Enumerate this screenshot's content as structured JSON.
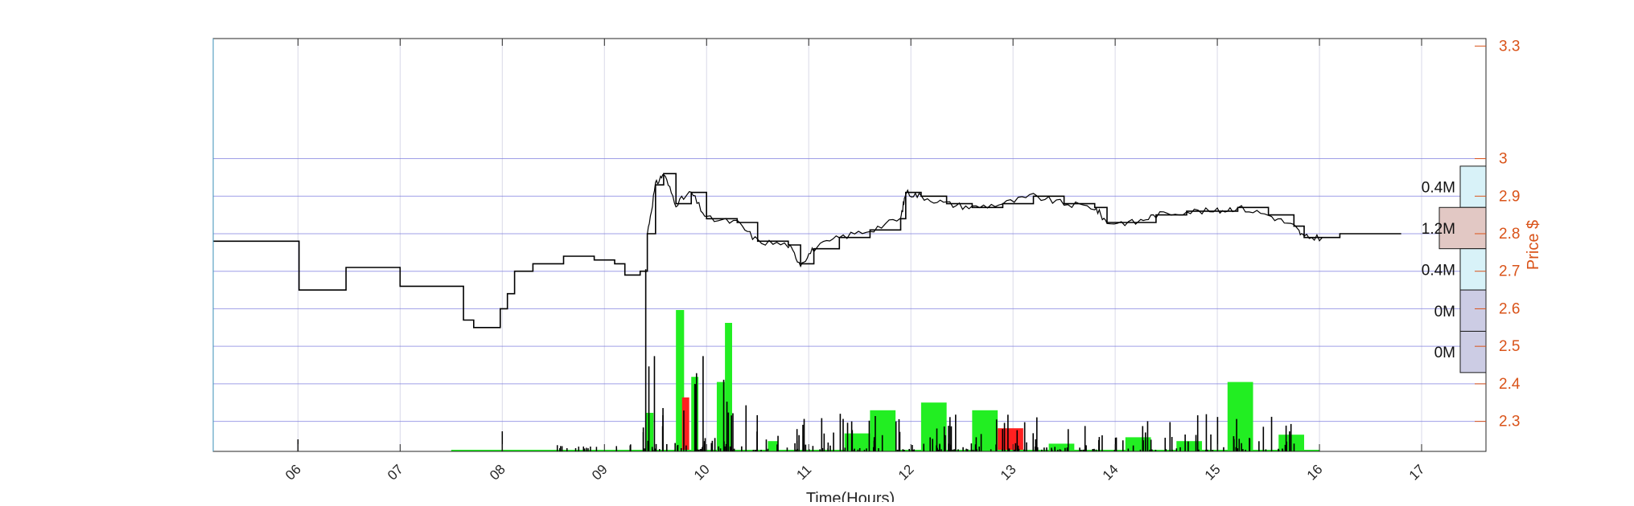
{
  "chart_data": {
    "type": "line",
    "xlabel": "Time(Hours)",
    "ylabel": "Price $",
    "x_range_hours": [
      5.17,
      17.63
    ],
    "x_ticks": [
      "06",
      "07",
      "08",
      "09",
      "10",
      "11",
      "12",
      "13",
      "14",
      "15",
      "16",
      "17"
    ],
    "y_right_range": [
      2.22,
      3.32
    ],
    "y_right_ticks": [
      "2.3",
      "2.4",
      "2.5",
      "2.6",
      "2.7",
      "2.8",
      "2.9",
      "3"
    ],
    "y_right_tick_top": "3.3",
    "grid": true,
    "colors": {
      "price_line": "#000000",
      "price_axis": "#d95319",
      "gridline": "#7f7fe0",
      "vgrid": "#d9d9e8",
      "buy_volume": "#22ee22",
      "sell_volume": "#ff2020",
      "profile_high": "#d8f2f8",
      "profile_max": "#e2c8c4",
      "profile_low": "#cccce4"
    },
    "price_series": [
      [
        5.17,
        2.78
      ],
      [
        6.0,
        2.78
      ],
      [
        6.01,
        2.65
      ],
      [
        6.45,
        2.65
      ],
      [
        6.47,
        2.71
      ],
      [
        6.98,
        2.71
      ],
      [
        7.0,
        2.66
      ],
      [
        7.35,
        2.66
      ],
      [
        7.62,
        2.57
      ],
      [
        7.72,
        2.55
      ],
      [
        7.95,
        2.55
      ],
      [
        7.98,
        2.6
      ],
      [
        8.05,
        2.64
      ],
      [
        8.12,
        2.7
      ],
      [
        8.3,
        2.72
      ],
      [
        8.6,
        2.74
      ],
      [
        8.9,
        2.73
      ],
      [
        9.1,
        2.72
      ],
      [
        9.2,
        2.69
      ],
      [
        9.35,
        2.7
      ],
      [
        9.42,
        2.8
      ],
      [
        9.5,
        2.93
      ],
      [
        9.58,
        2.96
      ],
      [
        9.7,
        2.88
      ],
      [
        9.85,
        2.91
      ],
      [
        10.0,
        2.84
      ],
      [
        10.3,
        2.83
      ],
      [
        10.5,
        2.78
      ],
      [
        10.8,
        2.77
      ],
      [
        10.92,
        2.72
      ],
      [
        11.05,
        2.76
      ],
      [
        11.3,
        2.79
      ],
      [
        11.6,
        2.81
      ],
      [
        11.9,
        2.84
      ],
      [
        11.95,
        2.91
      ],
      [
        12.1,
        2.9
      ],
      [
        12.35,
        2.88
      ],
      [
        12.6,
        2.87
      ],
      [
        12.9,
        2.88
      ],
      [
        13.2,
        2.9
      ],
      [
        13.5,
        2.88
      ],
      [
        13.8,
        2.87
      ],
      [
        13.92,
        2.83
      ],
      [
        14.2,
        2.83
      ],
      [
        14.4,
        2.85
      ],
      [
        14.7,
        2.86
      ],
      [
        15.0,
        2.86
      ],
      [
        15.2,
        2.87
      ],
      [
        15.5,
        2.85
      ],
      [
        15.75,
        2.82
      ],
      [
        15.85,
        2.79
      ],
      [
        16.05,
        2.79
      ],
      [
        16.2,
        2.8
      ],
      [
        16.8,
        2.8
      ]
    ],
    "volume_bars": [
      {
        "x": 9.4,
        "w": 0.08,
        "v": 0.15,
        "side": "buy"
      },
      {
        "x": 9.7,
        "w": 0.08,
        "v": 0.55,
        "side": "buy"
      },
      {
        "x": 9.76,
        "w": 0.07,
        "v": 0.21,
        "side": "sell"
      },
      {
        "x": 9.85,
        "w": 0.07,
        "v": 0.29,
        "side": "buy"
      },
      {
        "x": 10.1,
        "w": 0.08,
        "v": 0.27,
        "side": "buy"
      },
      {
        "x": 10.18,
        "w": 0.07,
        "v": 0.5,
        "side": "buy"
      },
      {
        "x": 10.6,
        "w": 0.1,
        "v": 0.04,
        "side": "buy"
      },
      {
        "x": 11.35,
        "w": 0.25,
        "v": 0.07,
        "side": "buy"
      },
      {
        "x": 11.6,
        "w": 0.25,
        "v": 0.16,
        "side": "buy"
      },
      {
        "x": 12.1,
        "w": 0.25,
        "v": 0.19,
        "side": "buy"
      },
      {
        "x": 12.6,
        "w": 0.25,
        "v": 0.16,
        "side": "buy"
      },
      {
        "x": 12.85,
        "w": 0.25,
        "v": 0.09,
        "side": "sell"
      },
      {
        "x": 13.35,
        "w": 0.25,
        "v": 0.03,
        "side": "buy"
      },
      {
        "x": 14.1,
        "w": 0.25,
        "v": 0.055,
        "side": "buy"
      },
      {
        "x": 14.6,
        "w": 0.25,
        "v": 0.04,
        "side": "buy"
      },
      {
        "x": 15.1,
        "w": 0.25,
        "v": 0.27,
        "side": "buy"
      },
      {
        "x": 15.6,
        "w": 0.25,
        "v": 0.065,
        "side": "buy"
      }
    ],
    "volume_profile": [
      {
        "price_low": 2.87,
        "price_high": 2.98,
        "label": "0.4M",
        "level": "high"
      },
      {
        "price_low": 2.76,
        "price_high": 2.87,
        "label": "1.2M",
        "level": "max"
      },
      {
        "price_low": 2.65,
        "price_high": 2.76,
        "label": "0.4M",
        "level": "high"
      },
      {
        "price_low": 2.54,
        "price_high": 2.65,
        "label": "0M",
        "level": "low"
      },
      {
        "price_low": 2.43,
        "price_high": 2.54,
        "label": "0M",
        "level": "low"
      }
    ],
    "volume_profile_max": 1.2
  }
}
